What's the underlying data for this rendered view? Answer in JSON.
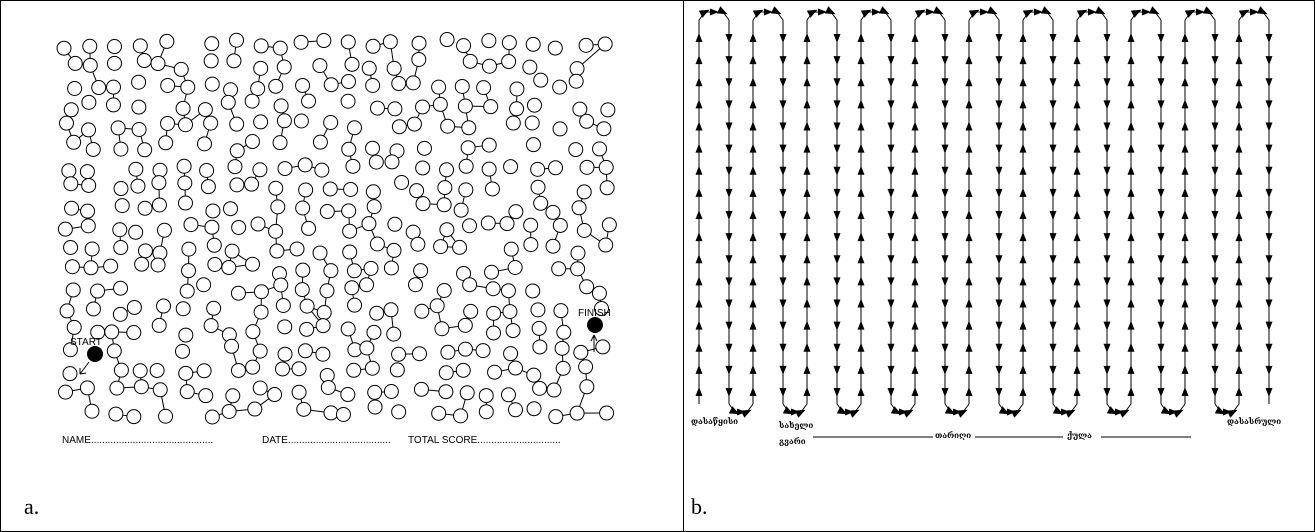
{
  "panel_a": {
    "caption": "a.",
    "start_label": "START",
    "finish_label": "FINISH",
    "footer": {
      "name": "NAME............................................",
      "date": "DATE.....................................",
      "total_score": "TOTAL SCORE.............................."
    }
  },
  "panel_b": {
    "caption": "b.",
    "start_label": "დასაწყისი",
    "finish_label": "დასასრული",
    "form": {
      "line1": "სახელი",
      "line2": "გვარი",
      "date_label": "თარიღი",
      "score_label": "ქულა"
    }
  },
  "colors": {
    "ink": "#000000",
    "background": "#ffffff"
  }
}
